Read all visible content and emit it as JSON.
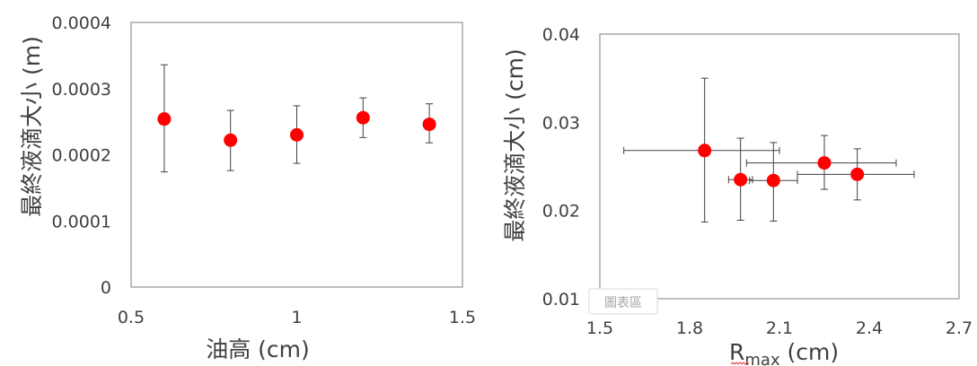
{
  "colors": {
    "marker": "#ff0000",
    "error_bar": "#404040",
    "frame": "#7f7f7f",
    "text": "#404040",
    "spellcheck_underline": "#e04040"
  },
  "chart_data": [
    {
      "type": "scatter",
      "xlabel": "油高 (cm)",
      "ylabel": "最終液滴大小 (m)",
      "xlim": [
        0.5,
        1.5
      ],
      "ylim": [
        0,
        0.0004
      ],
      "x_ticks": [
        "0.5",
        "1",
        "1.5"
      ],
      "y_ticks": [
        "0",
        "0.0001",
        "0.0002",
        "0.0003",
        "0.0004"
      ],
      "grid": false,
      "points": [
        {
          "x": 0.6,
          "y": 0.000254,
          "y_low": 0.000174,
          "y_high": 0.000336
        },
        {
          "x": 0.8,
          "y": 0.000222,
          "y_low": 0.000176,
          "y_high": 0.000267
        },
        {
          "x": 1.0,
          "y": 0.00023,
          "y_low": 0.000187,
          "y_high": 0.000274
        },
        {
          "x": 1.2,
          "y": 0.000256,
          "y_low": 0.000226,
          "y_high": 0.000286
        },
        {
          "x": 1.4,
          "y": 0.000246,
          "y_low": 0.000218,
          "y_high": 0.000277
        }
      ]
    },
    {
      "type": "scatter",
      "xlabel": "R",
      "xlabel_subscript": "max",
      "xlabel_unit": " (cm)",
      "ylabel": "最終液滴大小 (cm)",
      "xlim": [
        1.5,
        2.7
      ],
      "ylim": [
        0.01,
        0.04
      ],
      "x_ticks": [
        "1.5",
        "1.8",
        "2.1",
        "2.4",
        "2.7"
      ],
      "y_ticks": [
        "0.01",
        "0.02",
        "0.03",
        "0.04"
      ],
      "grid": false,
      "points": [
        {
          "x": 1.85,
          "y": 0.0268,
          "x_low": 1.58,
          "x_high": 2.1,
          "y_low": 0.0187,
          "y_high": 0.035
        },
        {
          "x": 1.97,
          "y": 0.0235,
          "x_low": 1.93,
          "x_high": 2.01,
          "y_low": 0.0189,
          "y_high": 0.0282
        },
        {
          "x": 2.08,
          "y": 0.0234,
          "x_low": 2.0,
          "x_high": 2.16,
          "y_low": 0.0188,
          "y_high": 0.0277
        },
        {
          "x": 2.25,
          "y": 0.0254,
          "x_low": 1.99,
          "x_high": 2.49,
          "y_low": 0.0224,
          "y_high": 0.0285
        },
        {
          "x": 2.36,
          "y": 0.0241,
          "x_low": 2.16,
          "x_high": 2.55,
          "y_low": 0.0212,
          "y_high": 0.027
        }
      ]
    }
  ],
  "overlay": {
    "label": "圖表區"
  }
}
